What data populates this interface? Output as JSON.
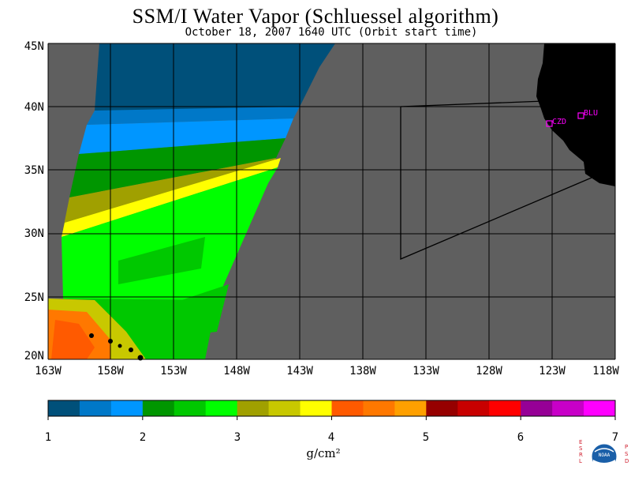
{
  "title": "SSM/I Water Vapor (Schluessel algorithm)",
  "subtitle": "October 18, 2007  1640 UTC  (Orbit start time)",
  "lat_labels": [
    "45N",
    "40N",
    "35N",
    "30N",
    "25N",
    "20N"
  ],
  "lon_labels": [
    "163W",
    "158W",
    "153W",
    "148W",
    "143W",
    "138W",
    "133W",
    "128W",
    "123W",
    "118W"
  ],
  "colorbar": {
    "ticks": [
      "1",
      "2",
      "3",
      "4",
      "5",
      "6",
      "7"
    ],
    "units": "g/cm²",
    "colors": [
      "#00507a",
      "#0078c8",
      "#0096ff",
      "#009600",
      "#00c800",
      "#00ff00",
      "#a0a000",
      "#c8c800",
      "#ffff00",
      "#ff5a00",
      "#ff7800",
      "#ffa000",
      "#960000",
      "#c80000",
      "#ff0000",
      "#960096",
      "#c800c8",
      "#ff00ff"
    ]
  },
  "stations": [
    {
      "label": "CZD"
    },
    {
      "label": "BLU"
    }
  ],
  "logo": {
    "left_text": "ESRL",
    "right_text": "PSD",
    "center_text": "NOAA"
  },
  "colors": {
    "land": "#000000",
    "no_data": "#5f5f5f",
    "station": "#ff00ff"
  }
}
